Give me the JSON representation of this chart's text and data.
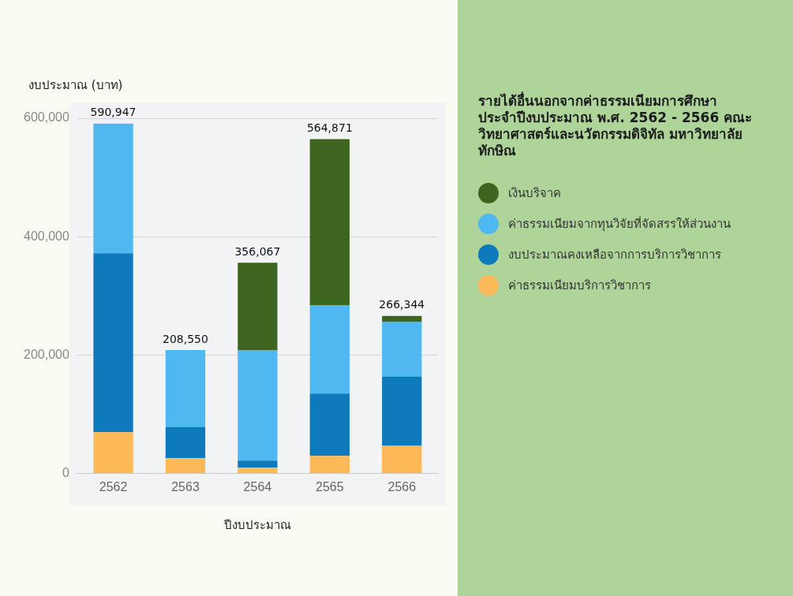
{
  "chart_data": {
    "type": "bar",
    "stacked": true,
    "title": "รายได้อื่นนอกจากค่าธรรมเนียมการศึกษา ประจำปีงบประมาณ พ.ศ. 2562 - 2566 คณะวิทยาศาสตร์และนวัตกรรมดิจิทัล มหาวิทยาลัยทักษิณ",
    "xlabel": "ปีงบประมาณ",
    "ylabel": "งบประมาณ (บาท)",
    "categories": [
      "2562",
      "2563",
      "2564",
      "2565",
      "2566"
    ],
    "series": [
      {
        "name": "ค่าธรรมเนียมบริการวิชาการ",
        "color": "#fdb858",
        "values": [
          70000,
          26000,
          10000,
          30000,
          47000
        ]
      },
      {
        "name": "งบประมาณคงเหลือจากการบริการวิชาการ",
        "color": "#0f7abb",
        "values": [
          302000,
          53000,
          12000,
          105000,
          117000
        ]
      },
      {
        "name": "ค่าธรรมเนียมจากทุนวิจัยที่จัดสรรให้ส่วนงาน",
        "color": "#4fb8f0",
        "values": [
          218947,
          129550,
          186000,
          149000,
          92000
        ]
      },
      {
        "name": "เงินบริจาค",
        "color": "#3e6520",
        "values": [
          null,
          null,
          148067,
          280871,
          10344
        ]
      }
    ],
    "totals": [
      "590,947",
      "208,550",
      "356,067",
      "564,871",
      "266,344"
    ],
    "ylim": [
      0,
      600000
    ],
    "yticks": [
      0,
      {
        "value": 200000,
        "label": "200,000"
      },
      {
        "value": 400000,
        "label": "400,000"
      },
      {
        "value": 600000,
        "label": "600,000"
      }
    ],
    "grid": "y",
    "legend": "right"
  }
}
